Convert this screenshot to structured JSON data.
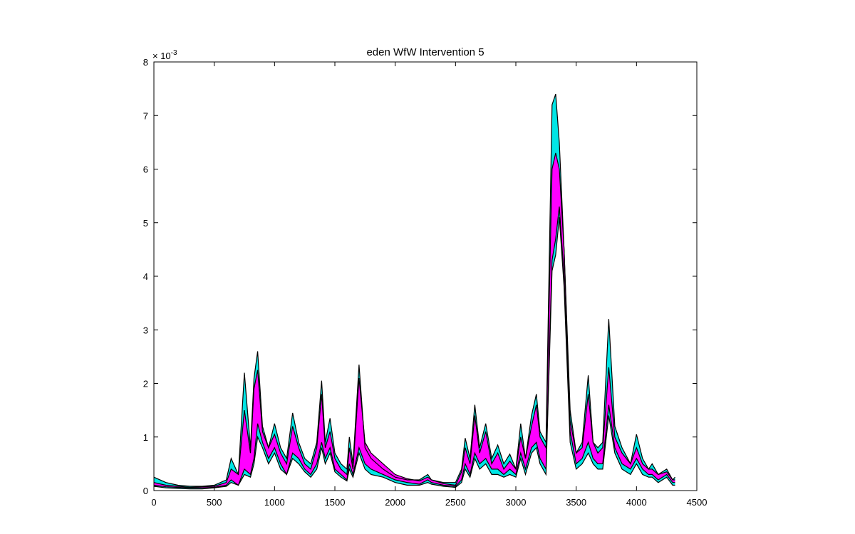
{
  "chart_data": {
    "type": "area",
    "title": "eden  WfW Intervention   5",
    "xlabel": "",
    "ylabel": "",
    "xlim": [
      0,
      4500
    ],
    "ylim": [
      0,
      0.008
    ],
    "y_exponent_label": "× 10",
    "y_exponent_power": "-3",
    "xticks": [
      0,
      500,
      1000,
      1500,
      2000,
      2500,
      3000,
      3500,
      4000,
      4500
    ],
    "xtick_labels": [
      "0",
      "500",
      "1000",
      "1500",
      "2000",
      "2500",
      "3000",
      "3500",
      "4000",
      "4500"
    ],
    "yticks": [
      0,
      1,
      2,
      3,
      4,
      5,
      6,
      7,
      8
    ],
    "ytick_labels": [
      "0",
      "1",
      "2",
      "3",
      "4",
      "5",
      "6",
      "7",
      "8"
    ],
    "grid": false,
    "colors": {
      "band_outer": "#00e5e5",
      "band_inner": "#ff00ff",
      "edge": "#000000"
    },
    "x": [
      0,
      100,
      200,
      300,
      400,
      500,
      600,
      640,
      700,
      750,
      800,
      830,
      860,
      900,
      950,
      1000,
      1050,
      1100,
      1150,
      1200,
      1250,
      1300,
      1350,
      1390,
      1420,
      1460,
      1500,
      1550,
      1600,
      1620,
      1650,
      1700,
      1750,
      1800,
      1900,
      2000,
      2100,
      2200,
      2270,
      2300,
      2400,
      2500,
      2550,
      2580,
      2620,
      2660,
      2700,
      2750,
      2800,
      2850,
      2900,
      2950,
      3000,
      3040,
      3080,
      3130,
      3170,
      3200,
      3250,
      3300,
      3330,
      3360,
      3400,
      3450,
      3500,
      3550,
      3600,
      3640,
      3680,
      3720,
      3770,
      3820,
      3880,
      3950,
      4000,
      4050,
      4100,
      4130,
      4180,
      4250,
      4300,
      4320
    ],
    "series": [
      {
        "values": [
          0.00025,
          0.00015,
          0.0001,
          8e-05,
          8e-05,
          0.0001,
          0.0002,
          0.0006,
          0.0003,
          0.0022,
          0.0008,
          0.0021,
          0.0026,
          0.0012,
          0.0008,
          0.00125,
          0.0008,
          0.0006,
          0.00145,
          0.0009,
          0.0006,
          0.0005,
          0.0009,
          0.00205,
          0.0009,
          0.00135,
          0.0007,
          0.0005,
          0.0004,
          0.001,
          0.0005,
          0.00235,
          0.0008,
          0.0006,
          0.0004,
          0.00025,
          0.0002,
          0.0002,
          0.0003,
          0.0002,
          0.00015,
          0.00015,
          0.0004,
          0.00098,
          0.0006,
          0.0016,
          0.0008,
          0.00125,
          0.0006,
          0.00085,
          0.0005,
          0.00068,
          0.0004,
          0.00125,
          0.0006,
          0.0014,
          0.0018,
          0.0011,
          0.0009,
          0.0072,
          0.0074,
          0.0065,
          0.0045,
          0.0015,
          0.0007,
          0.0009,
          0.00215,
          0.0009,
          0.0008,
          0.0009,
          0.0032,
          0.0012,
          0.0008,
          0.0005,
          0.00105,
          0.0006,
          0.0004,
          0.0005,
          0.0003,
          0.0004,
          0.0002,
          0.00025
        ]
      },
      {
        "values": [
          0.00015,
          0.0001,
          8e-05,
          6e-05,
          7e-05,
          8e-05,
          0.00015,
          0.0004,
          0.0003,
          0.0015,
          0.0007,
          0.0019,
          0.00225,
          0.0011,
          0.0008,
          0.00105,
          0.0007,
          0.0005,
          0.0012,
          0.0008,
          0.0005,
          0.0004,
          0.0008,
          0.0018,
          0.0008,
          0.0011,
          0.0006,
          0.0004,
          0.0003,
          0.0008,
          0.0004,
          0.0021,
          0.0009,
          0.0007,
          0.0005,
          0.0003,
          0.00022,
          0.00018,
          0.00025,
          0.0002,
          0.00013,
          0.0001,
          0.00035,
          0.0008,
          0.0005,
          0.0014,
          0.0007,
          0.0011,
          0.0005,
          0.0007,
          0.0004,
          0.00055,
          0.0004,
          0.001,
          0.0006,
          0.0012,
          0.0016,
          0.001,
          0.0008,
          0.006,
          0.0063,
          0.006,
          0.0045,
          0.0013,
          0.0007,
          0.0008,
          0.0018,
          0.0009,
          0.0007,
          0.0008,
          0.0023,
          0.001,
          0.0007,
          0.0005,
          0.0008,
          0.0005,
          0.0004,
          0.0004,
          0.0003,
          0.00035,
          0.0002,
          0.0002
        ]
      },
      {
        "values": [
          0.0001,
          7e-05,
          6e-05,
          5e-05,
          5e-05,
          6e-05,
          0.0001,
          0.0002,
          0.0001,
          0.0004,
          0.0003,
          0.0006,
          0.00125,
          0.0009,
          0.0006,
          0.0008,
          0.0005,
          0.0003,
          0.0007,
          0.0006,
          0.0004,
          0.0003,
          0.0005,
          0.0009,
          0.0006,
          0.0008,
          0.0004,
          0.0003,
          0.0002,
          0.0005,
          0.0003,
          0.0008,
          0.0005,
          0.0004,
          0.0003,
          0.0002,
          0.00015,
          0.00012,
          0.0002,
          0.00015,
          0.0001,
          8e-05,
          0.0002,
          0.0005,
          0.0003,
          0.0007,
          0.0005,
          0.0006,
          0.0004,
          0.0004,
          0.0003,
          0.0004,
          0.0003,
          0.0007,
          0.0004,
          0.0008,
          0.0009,
          0.0006,
          0.0004,
          0.0043,
          0.0047,
          0.0053,
          0.004,
          0.0011,
          0.0005,
          0.0006,
          0.0009,
          0.0006,
          0.0005,
          0.0005,
          0.0016,
          0.0008,
          0.0005,
          0.0004,
          0.0006,
          0.0004,
          0.0003,
          0.0003,
          0.0002,
          0.0003,
          0.00015,
          0.00015
        ]
      },
      {
        "values": [
          8e-05,
          5e-05,
          4e-05,
          3e-05,
          3e-05,
          5e-05,
          8e-05,
          0.00015,
          0.0001,
          0.0003,
          0.00025,
          0.0005,
          0.001,
          0.0008,
          0.0005,
          0.0007,
          0.0004,
          0.0003,
          0.0006,
          0.0005,
          0.00035,
          0.00025,
          0.0004,
          0.0008,
          0.0005,
          0.0007,
          0.00035,
          0.00025,
          0.00018,
          0.0004,
          0.00025,
          0.0007,
          0.0004,
          0.0003,
          0.00025,
          0.00015,
          0.0001,
          0.0001,
          0.00015,
          0.00012,
          8e-05,
          6e-05,
          0.00015,
          0.0004,
          0.00025,
          0.0006,
          0.0004,
          0.0005,
          0.0003,
          0.0003,
          0.00025,
          0.0003,
          0.00025,
          0.0006,
          0.0003,
          0.0007,
          0.0008,
          0.0005,
          0.0003,
          0.0041,
          0.0044,
          0.0051,
          0.0038,
          0.0009,
          0.0004,
          0.0005,
          0.0007,
          0.0005,
          0.0004,
          0.0004,
          0.0014,
          0.0007,
          0.0004,
          0.0003,
          0.0005,
          0.0003,
          0.00025,
          0.00025,
          0.00015,
          0.00025,
          0.0001,
          0.0001
        ]
      }
    ]
  }
}
